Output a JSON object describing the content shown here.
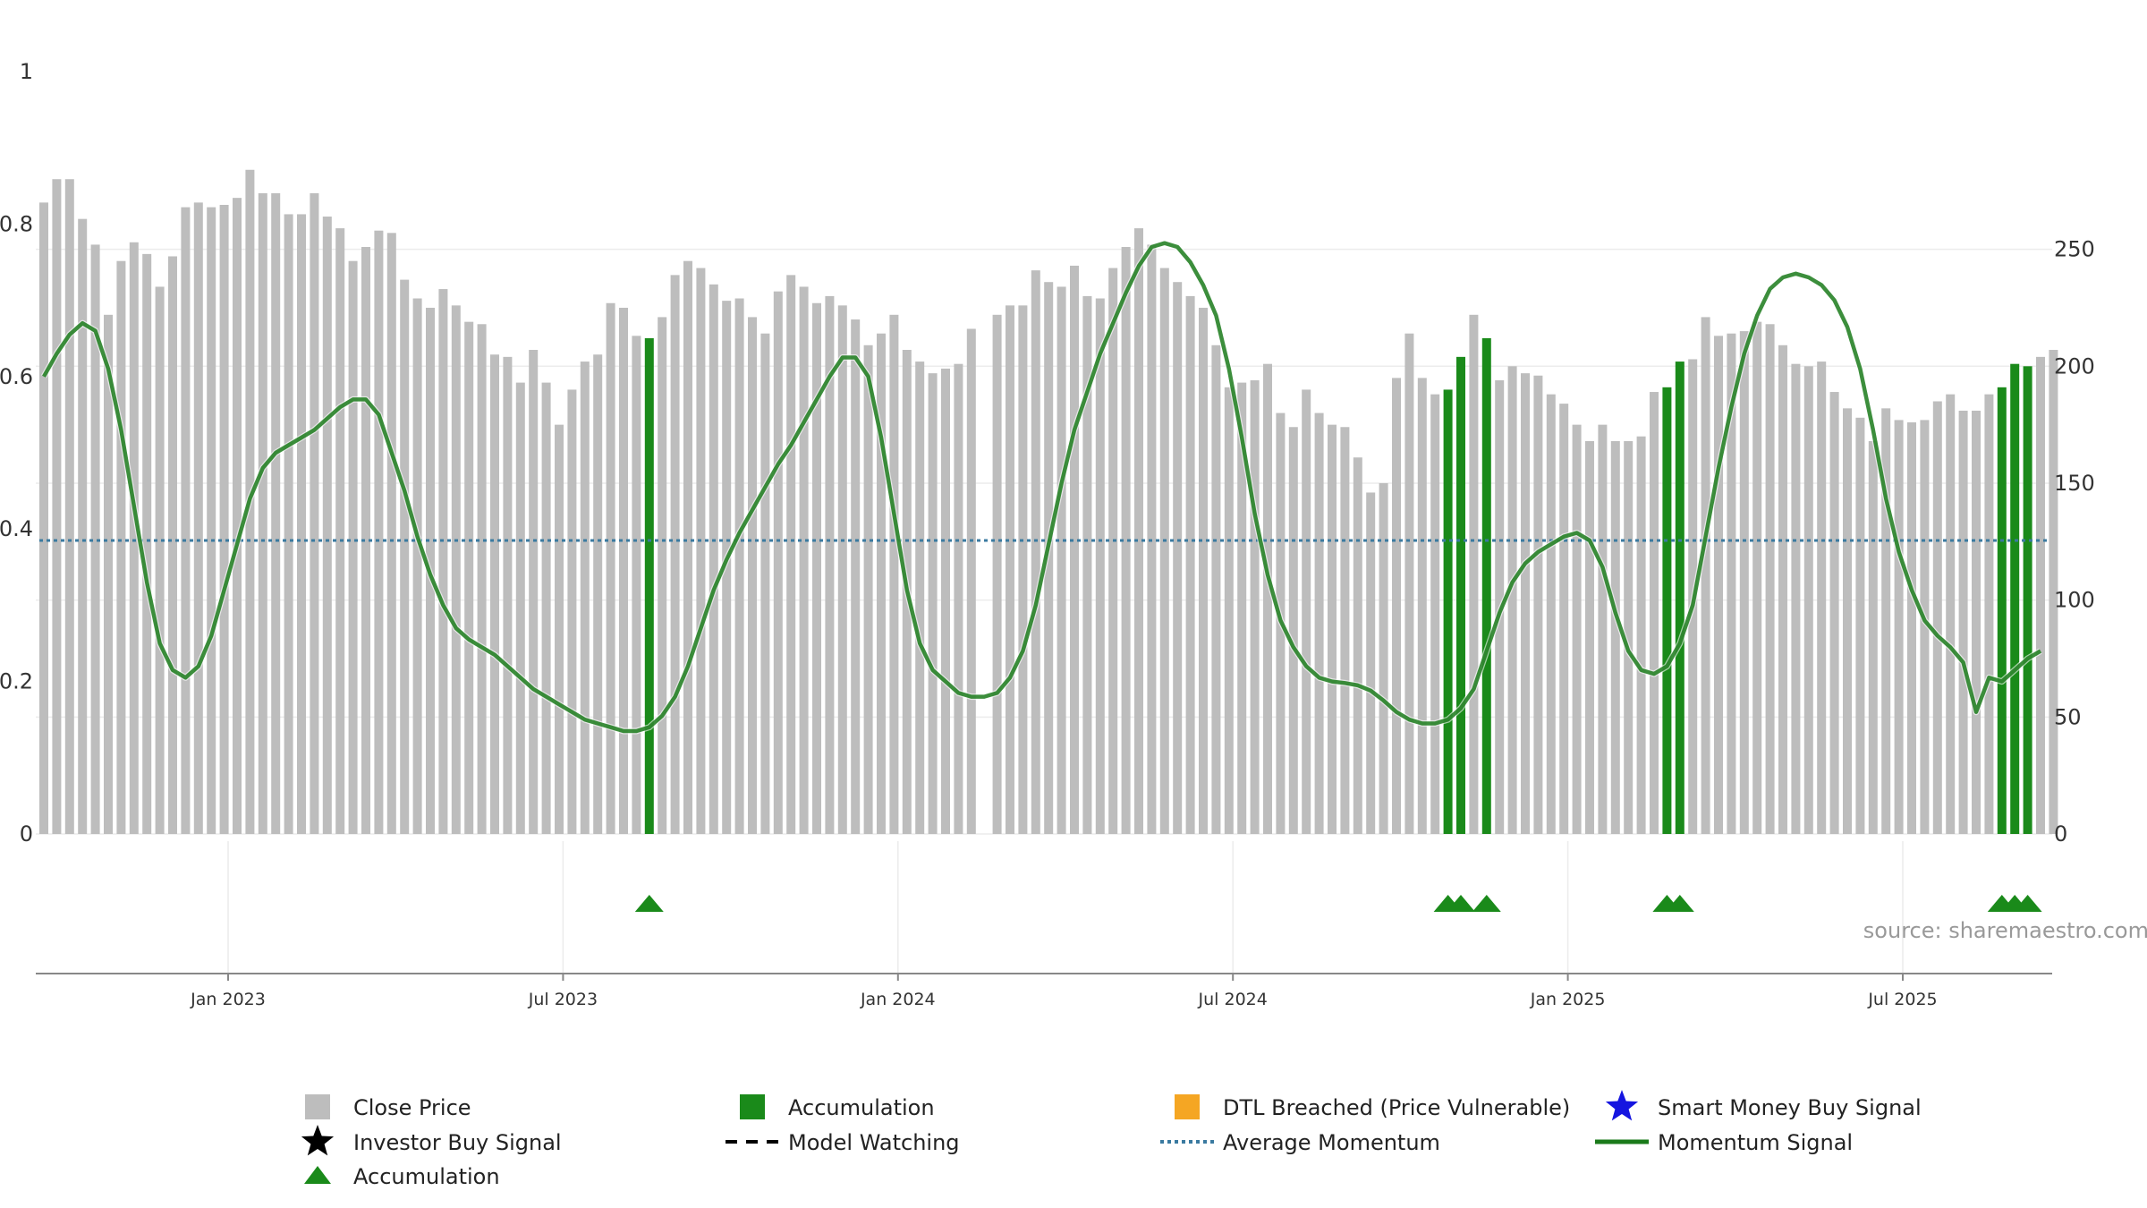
{
  "source_text": "source: sharemaestro.com",
  "chart_data": {
    "type": "bar",
    "title": "",
    "left_axis": {
      "range": [
        0,
        1
      ],
      "ticks": [
        0,
        0.2,
        0.4,
        0.6,
        0.8
      ],
      "tick_labels": [
        "0",
        "0.2",
        "0.4",
        "0.6",
        "0.8"
      ],
      "top_label": "1"
    },
    "right_axis": {
      "range": [
        0,
        326
      ],
      "ticks": [
        0,
        50,
        100,
        150,
        200,
        250
      ],
      "tick_labels": [
        "0",
        "50",
        "100",
        "150",
        "200",
        "250"
      ]
    },
    "x_axis": {
      "start_week": 0,
      "end_week": 156,
      "date_labels": [
        {
          "week": 15,
          "label": "Jan 2023"
        },
        {
          "week": 41,
          "label": "Jul 2023"
        },
        {
          "week": 67,
          "label": "Jan 2024"
        },
        {
          "week": 93,
          "label": "Jul 2024"
        },
        {
          "week": 119,
          "label": "Jan 2025"
        },
        {
          "week": 145,
          "label": "Jul 2025"
        }
      ]
    },
    "close_price_series": {
      "name": "Close Price",
      "unit": "price",
      "color_regular": "#bdbdbd",
      "color_accumulation": "#1a8a1a",
      "values": [
        270,
        280,
        280,
        263,
        252,
        222,
        245,
        253,
        248,
        234,
        247,
        268,
        270,
        268,
        269,
        272,
        284,
        274,
        274,
        265,
        265,
        274,
        264,
        259,
        245,
        251,
        258,
        257,
        237,
        229,
        225,
        233,
        226,
        219,
        218,
        205,
        204,
        193,
        207,
        193,
        175,
        190,
        202,
        205,
        227,
        225,
        213,
        212,
        221,
        239,
        245,
        242,
        235,
        228,
        229,
        221,
        214,
        232,
        239,
        234,
        227,
        230,
        226,
        220,
        209,
        214,
        222,
        207,
        202,
        197,
        199,
        201,
        216,
        0,
        222,
        226,
        226,
        241,
        236,
        234,
        243,
        230,
        229,
        242,
        251,
        259,
        252,
        242,
        236,
        230,
        225,
        209,
        191,
        193,
        194,
        201,
        180,
        174,
        190,
        180,
        175,
        174,
        161,
        146,
        150,
        195,
        214,
        195,
        188,
        190,
        204,
        222,
        212,
        194,
        200,
        197,
        196,
        188,
        184,
        175,
        168,
        175,
        168,
        168,
        170,
        189,
        191,
        202,
        203,
        221,
        213,
        214,
        215,
        219,
        218,
        209,
        201,
        200,
        202,
        189,
        182,
        178,
        168,
        182,
        177,
        176,
        177,
        185,
        188,
        181,
        181,
        188,
        191,
        201,
        200,
        204,
        207
      ],
      "accumulation_weeks": [
        47,
        109,
        110,
        112,
        126,
        127,
        152,
        153,
        154
      ]
    },
    "momentum_signal": {
      "name": "Momentum Signal",
      "color": "#1a7a1a",
      "points": [
        [
          0,
          0.6
        ],
        [
          1,
          0.63
        ],
        [
          2,
          0.655
        ],
        [
          3,
          0.67
        ],
        [
          4,
          0.66
        ],
        [
          5,
          0.61
        ],
        [
          6,
          0.53
        ],
        [
          7,
          0.43
        ],
        [
          8,
          0.33
        ],
        [
          9,
          0.25
        ],
        [
          10,
          0.215
        ],
        [
          11,
          0.205
        ],
        [
          12,
          0.22
        ],
        [
          13,
          0.26
        ],
        [
          14,
          0.32
        ],
        [
          15,
          0.38
        ],
        [
          16,
          0.44
        ],
        [
          17,
          0.48
        ],
        [
          18,
          0.5
        ],
        [
          19,
          0.51
        ],
        [
          20,
          0.52
        ],
        [
          21,
          0.53
        ],
        [
          22,
          0.545
        ],
        [
          23,
          0.56
        ],
        [
          24,
          0.57
        ],
        [
          25,
          0.57
        ],
        [
          26,
          0.55
        ],
        [
          27,
          0.5
        ],
        [
          28,
          0.45
        ],
        [
          29,
          0.39
        ],
        [
          30,
          0.34
        ],
        [
          31,
          0.3
        ],
        [
          32,
          0.27
        ],
        [
          33,
          0.255
        ],
        [
          34,
          0.245
        ],
        [
          35,
          0.235
        ],
        [
          36,
          0.22
        ],
        [
          37,
          0.205
        ],
        [
          38,
          0.19
        ],
        [
          39,
          0.18
        ],
        [
          40,
          0.17
        ],
        [
          41,
          0.16
        ],
        [
          42,
          0.15
        ],
        [
          43,
          0.145
        ],
        [
          44,
          0.14
        ],
        [
          45,
          0.135
        ],
        [
          46,
          0.135
        ],
        [
          47,
          0.14
        ],
        [
          48,
          0.155
        ],
        [
          49,
          0.18
        ],
        [
          50,
          0.22
        ],
        [
          51,
          0.27
        ],
        [
          52,
          0.32
        ],
        [
          53,
          0.36
        ],
        [
          54,
          0.395
        ],
        [
          55,
          0.425
        ],
        [
          56,
          0.455
        ],
        [
          57,
          0.485
        ],
        [
          58,
          0.51
        ],
        [
          59,
          0.54
        ],
        [
          60,
          0.57
        ],
        [
          61,
          0.6
        ],
        [
          62,
          0.625
        ],
        [
          63,
          0.625
        ],
        [
          64,
          0.6
        ],
        [
          65,
          0.52
        ],
        [
          66,
          0.42
        ],
        [
          67,
          0.32
        ],
        [
          68,
          0.25
        ],
        [
          69,
          0.215
        ],
        [
          70,
          0.2
        ],
        [
          71,
          0.185
        ],
        [
          72,
          0.18
        ],
        [
          73,
          0.18
        ],
        [
          74,
          0.185
        ],
        [
          75,
          0.205
        ],
        [
          76,
          0.24
        ],
        [
          77,
          0.3
        ],
        [
          78,
          0.38
        ],
        [
          79,
          0.46
        ],
        [
          80,
          0.53
        ],
        [
          81,
          0.58
        ],
        [
          82,
          0.63
        ],
        [
          83,
          0.67
        ],
        [
          84,
          0.71
        ],
        [
          85,
          0.745
        ],
        [
          86,
          0.77
        ],
        [
          87,
          0.775
        ],
        [
          88,
          0.77
        ],
        [
          89,
          0.75
        ],
        [
          90,
          0.72
        ],
        [
          91,
          0.68
        ],
        [
          92,
          0.61
        ],
        [
          93,
          0.52
        ],
        [
          94,
          0.42
        ],
        [
          95,
          0.34
        ],
        [
          96,
          0.28
        ],
        [
          97,
          0.245
        ],
        [
          98,
          0.22
        ],
        [
          99,
          0.205
        ],
        [
          100,
          0.2
        ],
        [
          101,
          0.198
        ],
        [
          102,
          0.195
        ],
        [
          103,
          0.188
        ],
        [
          104,
          0.175
        ],
        [
          105,
          0.16
        ],
        [
          106,
          0.15
        ],
        [
          107,
          0.145
        ],
        [
          108,
          0.145
        ],
        [
          109,
          0.15
        ],
        [
          110,
          0.165
        ],
        [
          111,
          0.19
        ],
        [
          112,
          0.24
        ],
        [
          113,
          0.29
        ],
        [
          114,
          0.33
        ],
        [
          115,
          0.355
        ],
        [
          116,
          0.37
        ],
        [
          117,
          0.38
        ],
        [
          118,
          0.39
        ],
        [
          119,
          0.395
        ],
        [
          120,
          0.385
        ],
        [
          121,
          0.35
        ],
        [
          122,
          0.29
        ],
        [
          123,
          0.24
        ],
        [
          124,
          0.215
        ],
        [
          125,
          0.21
        ],
        [
          126,
          0.22
        ],
        [
          127,
          0.25
        ],
        [
          128,
          0.3
        ],
        [
          129,
          0.39
        ],
        [
          130,
          0.48
        ],
        [
          131,
          0.56
        ],
        [
          132,
          0.63
        ],
        [
          133,
          0.68
        ],
        [
          134,
          0.715
        ],
        [
          135,
          0.73
        ],
        [
          136,
          0.735
        ],
        [
          137,
          0.73
        ],
        [
          138,
          0.72
        ],
        [
          139,
          0.7
        ],
        [
          140,
          0.665
        ],
        [
          141,
          0.61
        ],
        [
          142,
          0.53
        ],
        [
          143,
          0.44
        ],
        [
          144,
          0.37
        ],
        [
          145,
          0.32
        ],
        [
          146,
          0.28
        ],
        [
          147,
          0.26
        ],
        [
          148,
          0.245
        ],
        [
          149,
          0.225
        ],
        [
          150,
          0.16
        ],
        [
          151,
          0.205
        ],
        [
          152,
          0.2
        ],
        [
          153,
          0.215
        ],
        [
          154,
          0.23
        ],
        [
          155,
          0.24
        ]
      ]
    },
    "average_momentum": {
      "name": "Average Momentum",
      "value": 0.385,
      "color": "#3a7aa0"
    },
    "accumulation_markers": {
      "name": "Accumulation",
      "color": "#1a8a1a",
      "weeks": [
        47,
        109,
        110,
        112,
        126,
        127,
        152,
        153,
        154
      ]
    },
    "legend": [
      {
        "key": "close",
        "label": "Close Price",
        "symbol": "square",
        "color": "#bdbdbd"
      },
      {
        "key": "accum_bar",
        "label": "Accumulation",
        "symbol": "square",
        "color": "#1a8a1a"
      },
      {
        "key": "dtl",
        "label": "DTL Breached (Price Vulnerable)",
        "symbol": "square",
        "color": "#f5a623"
      },
      {
        "key": "smart",
        "label": "Smart Money Buy Signal",
        "symbol": "star",
        "color": "#1515e0"
      },
      {
        "key": "investor",
        "label": "Investor Buy Signal",
        "symbol": "star",
        "color": "#000000"
      },
      {
        "key": "watching",
        "label": "Model Watching",
        "symbol": "dash",
        "color": "#000000"
      },
      {
        "key": "avg",
        "label": "Average Momentum",
        "symbol": "dotted",
        "color": "#3a7aa0"
      },
      {
        "key": "momentum",
        "label": "Momentum Signal",
        "symbol": "line",
        "color": "#1a7a1a"
      },
      {
        "key": "accum_tri",
        "label": "Accumulation",
        "symbol": "triangle",
        "color": "#1a8a1a"
      }
    ]
  }
}
